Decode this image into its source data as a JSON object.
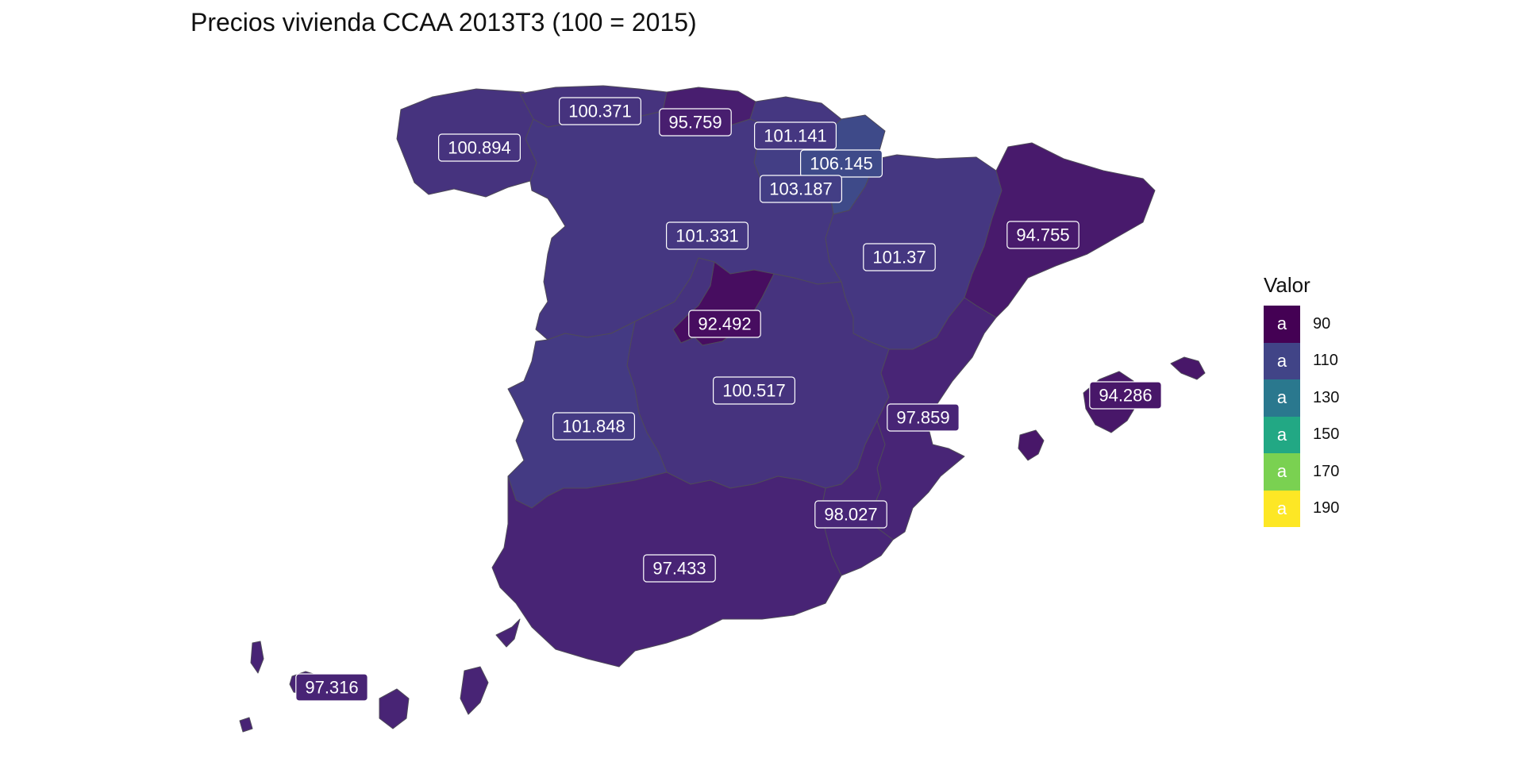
{
  "title": "Precios vivienda CCAA 2013T3 (100 = 2015)",
  "legend": {
    "title": "Valor",
    "items": [
      {
        "value": "90",
        "key_text": "a",
        "color": "#440154"
      },
      {
        "value": "110",
        "key_text": "a",
        "color": "#414487"
      },
      {
        "value": "130",
        "key_text": "a",
        "color": "#2A788E"
      },
      {
        "value": "150",
        "key_text": "a",
        "color": "#22A884"
      },
      {
        "value": "170",
        "key_text": "a",
        "color": "#7AD151"
      },
      {
        "value": "190",
        "key_text": "a",
        "color": "#FDE725"
      }
    ]
  },
  "chart_data": {
    "type": "choropleth",
    "title": "Precios vivienda CCAA 2013T3 (100 = 2015)",
    "legend_title": "Valor",
    "legend_position": "right",
    "scale": {
      "palette": "viridis",
      "breaks": [
        90,
        110,
        130,
        150,
        170,
        190
      ]
    },
    "regions": [
      {
        "id": "galicia",
        "value": 100.894,
        "label": "100.894",
        "fill": "#46337E"
      },
      {
        "id": "asturias",
        "value": 100.371,
        "label": "100.371",
        "fill": "#46337E"
      },
      {
        "id": "cantabria",
        "value": 95.759,
        "label": "95.759",
        "fill": "#481E6F"
      },
      {
        "id": "pais-vasco",
        "value": 101.141,
        "label": "101.141",
        "fill": "#453781"
      },
      {
        "id": "navarra",
        "value": 106.145,
        "label": "106.145",
        "fill": "#3E4A89"
      },
      {
        "id": "la-rioja",
        "value": 103.187,
        "label": "103.187",
        "fill": "#433E85"
      },
      {
        "id": "castilla-leon",
        "value": 101.331,
        "label": "101.331",
        "fill": "#453781"
      },
      {
        "id": "aragon",
        "value": 101.37,
        "label": "101.37",
        "fill": "#453781"
      },
      {
        "id": "cataluna",
        "value": 94.755,
        "label": "94.755",
        "fill": "#481A6C"
      },
      {
        "id": "madrid",
        "value": 92.492,
        "label": "92.492",
        "fill": "#470D60"
      },
      {
        "id": "castilla-la-mancha",
        "value": 100.517,
        "label": "100.517",
        "fill": "#46337E"
      },
      {
        "id": "extremadura",
        "value": 101.848,
        "label": "101.848",
        "fill": "#443A83"
      },
      {
        "id": "valencia",
        "value": 97.859,
        "label": "97.859",
        "fill": "#482576"
      },
      {
        "id": "murcia",
        "value": 98.027,
        "label": "98.027",
        "fill": "#482677"
      },
      {
        "id": "andalucia",
        "value": 97.433,
        "label": "97.433",
        "fill": "#482475"
      },
      {
        "id": "baleares",
        "value": 94.286,
        "label": "94.286",
        "fill": "#481769"
      },
      {
        "id": "canarias",
        "value": 97.316,
        "label": "97.316",
        "fill": "#482475"
      }
    ]
  }
}
